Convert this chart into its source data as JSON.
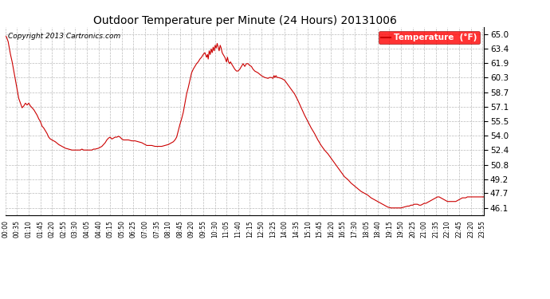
{
  "title": "Outdoor Temperature per Minute (24 Hours) 20131006",
  "copyright": "Copyright 2013 Cartronics.com",
  "legend_label": "Temperature  (°F)",
  "line_color": "#cc0000",
  "background_color": "#ffffff",
  "grid_color": "#bbbbbb",
  "yticks": [
    46.1,
    47.7,
    49.2,
    50.8,
    52.4,
    54.0,
    55.5,
    57.1,
    58.7,
    60.3,
    61.9,
    63.4,
    65.0
  ],
  "ymin": 45.3,
  "ymax": 65.8,
  "xtick_interval_minutes": 35,
  "total_minutes": 1440,
  "curve_points": [
    [
      0,
      64.8
    ],
    [
      3,
      64.7
    ],
    [
      5,
      64.5
    ],
    [
      8,
      64.2
    ],
    [
      10,
      63.8
    ],
    [
      15,
      62.8
    ],
    [
      20,
      62.0
    ],
    [
      25,
      61.0
    ],
    [
      30,
      60.0
    ],
    [
      35,
      59.0
    ],
    [
      40,
      58.0
    ],
    [
      45,
      57.5
    ],
    [
      50,
      57.0
    ],
    [
      55,
      57.2
    ],
    [
      60,
      57.5
    ],
    [
      65,
      57.3
    ],
    [
      70,
      57.5
    ],
    [
      75,
      57.2
    ],
    [
      80,
      57.0
    ],
    [
      85,
      56.8
    ],
    [
      90,
      56.5
    ],
    [
      95,
      56.2
    ],
    [
      100,
      55.8
    ],
    [
      105,
      55.5
    ],
    [
      110,
      55.0
    ],
    [
      115,
      54.8
    ],
    [
      120,
      54.5
    ],
    [
      125,
      54.2
    ],
    [
      130,
      53.8
    ],
    [
      135,
      53.6
    ],
    [
      140,
      53.5
    ],
    [
      150,
      53.3
    ],
    [
      160,
      53.0
    ],
    [
      170,
      52.8
    ],
    [
      180,
      52.6
    ],
    [
      190,
      52.5
    ],
    [
      200,
      52.4
    ],
    [
      210,
      52.4
    ],
    [
      215,
      52.4
    ],
    [
      220,
      52.4
    ],
    [
      225,
      52.4
    ],
    [
      230,
      52.5
    ],
    [
      235,
      52.4
    ],
    [
      240,
      52.4
    ],
    [
      245,
      52.4
    ],
    [
      250,
      52.4
    ],
    [
      255,
      52.4
    ],
    [
      260,
      52.4
    ],
    [
      265,
      52.5
    ],
    [
      270,
      52.5
    ],
    [
      280,
      52.6
    ],
    [
      285,
      52.7
    ],
    [
      290,
      52.8
    ],
    [
      295,
      53.0
    ],
    [
      300,
      53.2
    ],
    [
      305,
      53.5
    ],
    [
      310,
      53.7
    ],
    [
      315,
      53.8
    ],
    [
      320,
      53.6
    ],
    [
      325,
      53.7
    ],
    [
      330,
      53.8
    ],
    [
      335,
      53.8
    ],
    [
      340,
      53.9
    ],
    [
      345,
      53.8
    ],
    [
      350,
      53.6
    ],
    [
      355,
      53.5
    ],
    [
      360,
      53.5
    ],
    [
      370,
      53.5
    ],
    [
      380,
      53.4
    ],
    [
      390,
      53.4
    ],
    [
      400,
      53.3
    ],
    [
      410,
      53.2
    ],
    [
      420,
      53.0
    ],
    [
      425,
      52.9
    ],
    [
      430,
      52.9
    ],
    [
      440,
      52.9
    ],
    [
      450,
      52.8
    ],
    [
      460,
      52.8
    ],
    [
      470,
      52.8
    ],
    [
      480,
      52.9
    ],
    [
      490,
      53.0
    ],
    [
      500,
      53.2
    ],
    [
      505,
      53.3
    ],
    [
      510,
      53.5
    ],
    [
      515,
      53.8
    ],
    [
      520,
      54.5
    ],
    [
      525,
      55.2
    ],
    [
      530,
      55.8
    ],
    [
      535,
      56.5
    ],
    [
      540,
      57.5
    ],
    [
      545,
      58.5
    ],
    [
      550,
      59.2
    ],
    [
      555,
      60.0
    ],
    [
      560,
      60.8
    ],
    [
      565,
      61.2
    ],
    [
      570,
      61.5
    ],
    [
      575,
      61.8
    ],
    [
      580,
      62.0
    ],
    [
      585,
      62.3
    ],
    [
      590,
      62.5
    ],
    [
      595,
      62.8
    ],
    [
      600,
      63.0
    ],
    [
      605,
      62.5
    ],
    [
      608,
      62.8
    ],
    [
      610,
      62.3
    ],
    [
      613,
      63.2
    ],
    [
      616,
      62.8
    ],
    [
      619,
      63.4
    ],
    [
      622,
      63.0
    ],
    [
      625,
      63.6
    ],
    [
      628,
      63.2
    ],
    [
      631,
      63.8
    ],
    [
      634,
      63.5
    ],
    [
      637,
      64.0
    ],
    [
      640,
      63.6
    ],
    [
      643,
      63.2
    ],
    [
      646,
      63.8
    ],
    [
      649,
      63.5
    ],
    [
      652,
      63.0
    ],
    [
      655,
      62.8
    ],
    [
      660,
      62.5
    ],
    [
      665,
      62.0
    ],
    [
      668,
      62.5
    ],
    [
      671,
      62.0
    ],
    [
      674,
      61.8
    ],
    [
      677,
      62.0
    ],
    [
      680,
      61.8
    ],
    [
      685,
      61.5
    ],
    [
      690,
      61.2
    ],
    [
      695,
      61.0
    ],
    [
      700,
      61.0
    ],
    [
      705,
      61.2
    ],
    [
      710,
      61.5
    ],
    [
      715,
      61.8
    ],
    [
      720,
      61.5
    ],
    [
      725,
      61.8
    ],
    [
      730,
      61.8
    ],
    [
      735,
      61.6
    ],
    [
      740,
      61.5
    ],
    [
      745,
      61.2
    ],
    [
      750,
      61.0
    ],
    [
      760,
      60.8
    ],
    [
      770,
      60.5
    ],
    [
      780,
      60.3
    ],
    [
      790,
      60.2
    ],
    [
      795,
      60.3
    ],
    [
      800,
      60.3
    ],
    [
      805,
      60.2
    ],
    [
      808,
      60.5
    ],
    [
      811,
      60.3
    ],
    [
      814,
      60.5
    ],
    [
      817,
      60.3
    ],
    [
      820,
      60.3
    ],
    [
      830,
      60.2
    ],
    [
      840,
      60.0
    ],
    [
      850,
      59.5
    ],
    [
      860,
      59.0
    ],
    [
      870,
      58.5
    ],
    [
      880,
      57.8
    ],
    [
      890,
      57.0
    ],
    [
      900,
      56.2
    ],
    [
      910,
      55.5
    ],
    [
      920,
      54.8
    ],
    [
      930,
      54.2
    ],
    [
      940,
      53.5
    ],
    [
      950,
      52.9
    ],
    [
      960,
      52.4
    ],
    [
      970,
      52.0
    ],
    [
      980,
      51.5
    ],
    [
      990,
      51.0
    ],
    [
      1000,
      50.5
    ],
    [
      1010,
      50.0
    ],
    [
      1020,
      49.5
    ],
    [
      1030,
      49.2
    ],
    [
      1040,
      48.8
    ],
    [
      1050,
      48.5
    ],
    [
      1060,
      48.2
    ],
    [
      1070,
      47.9
    ],
    [
      1080,
      47.7
    ],
    [
      1090,
      47.5
    ],
    [
      1100,
      47.2
    ],
    [
      1110,
      47.0
    ],
    [
      1115,
      46.9
    ],
    [
      1120,
      46.8
    ],
    [
      1125,
      46.7
    ],
    [
      1130,
      46.6
    ],
    [
      1135,
      46.5
    ],
    [
      1140,
      46.4
    ],
    [
      1145,
      46.3
    ],
    [
      1150,
      46.2
    ],
    [
      1155,
      46.15
    ],
    [
      1160,
      46.1
    ],
    [
      1165,
      46.1
    ],
    [
      1170,
      46.1
    ],
    [
      1175,
      46.1
    ],
    [
      1180,
      46.1
    ],
    [
      1185,
      46.1
    ],
    [
      1190,
      46.1
    ],
    [
      1195,
      46.15
    ],
    [
      1200,
      46.2
    ],
    [
      1210,
      46.3
    ],
    [
      1215,
      46.3
    ],
    [
      1220,
      46.4
    ],
    [
      1225,
      46.4
    ],
    [
      1230,
      46.5
    ],
    [
      1235,
      46.5
    ],
    [
      1240,
      46.5
    ],
    [
      1245,
      46.4
    ],
    [
      1250,
      46.4
    ],
    [
      1255,
      46.5
    ],
    [
      1260,
      46.6
    ],
    [
      1265,
      46.6
    ],
    [
      1270,
      46.7
    ],
    [
      1275,
      46.8
    ],
    [
      1280,
      46.9
    ],
    [
      1285,
      47.0
    ],
    [
      1290,
      47.1
    ],
    [
      1295,
      47.2
    ],
    [
      1300,
      47.3
    ],
    [
      1305,
      47.3
    ],
    [
      1310,
      47.2
    ],
    [
      1315,
      47.1
    ],
    [
      1320,
      47.0
    ],
    [
      1325,
      46.9
    ],
    [
      1330,
      46.8
    ],
    [
      1335,
      46.8
    ],
    [
      1340,
      46.8
    ],
    [
      1345,
      46.8
    ],
    [
      1350,
      46.8
    ],
    [
      1355,
      46.8
    ],
    [
      1360,
      46.9
    ],
    [
      1365,
      47.0
    ],
    [
      1370,
      47.1
    ],
    [
      1375,
      47.2
    ],
    [
      1380,
      47.2
    ],
    [
      1385,
      47.2
    ],
    [
      1390,
      47.3
    ],
    [
      1395,
      47.3
    ],
    [
      1400,
      47.3
    ],
    [
      1405,
      47.3
    ],
    [
      1410,
      47.3
    ],
    [
      1415,
      47.3
    ],
    [
      1420,
      47.3
    ],
    [
      1425,
      47.3
    ],
    [
      1430,
      47.3
    ],
    [
      1435,
      47.3
    ],
    [
      1440,
      47.3
    ]
  ]
}
